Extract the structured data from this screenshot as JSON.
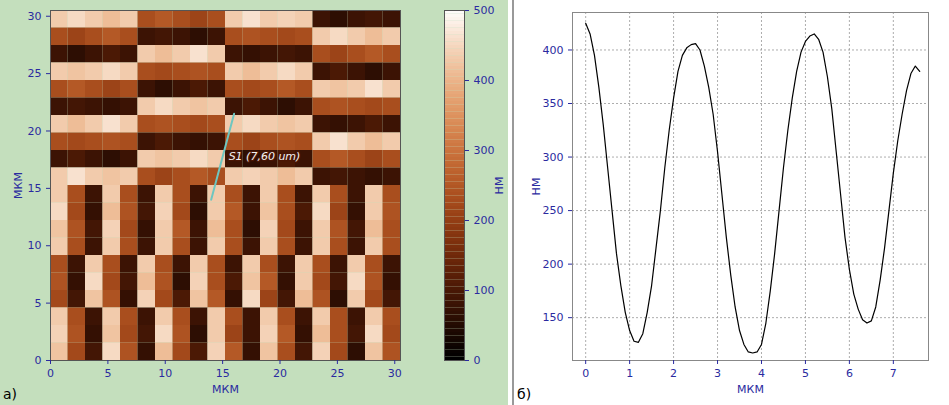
{
  "chart_data": [
    {
      "type": "heatmap",
      "panel_label": "а)",
      "x_label": "МКМ",
      "y_label": "МКМ",
      "xlim": [
        0,
        30.5
      ],
      "ylim": [
        0,
        30.5
      ],
      "xticks": [
        0,
        5,
        10,
        15,
        20,
        25,
        30
      ],
      "yticks": [
        0,
        5,
        10,
        15,
        20,
        25,
        30
      ],
      "cells": [
        [
          430,
          450,
          430,
          410,
          430,
          230,
          250,
          230,
          210,
          230,
          430,
          460,
          430,
          440,
          430,
          80,
          60,
          80,
          90,
          80
        ],
        [
          230,
          210,
          230,
          250,
          230,
          80,
          90,
          80,
          60,
          80,
          230,
          240,
          230,
          220,
          230,
          430,
          450,
          430,
          410,
          430
        ],
        [
          80,
          60,
          80,
          100,
          80,
          430,
          410,
          430,
          460,
          430,
          80,
          70,
          80,
          90,
          80,
          230,
          210,
          230,
          250,
          230
        ],
        [
          430,
          420,
          430,
          450,
          430,
          230,
          220,
          230,
          240,
          230,
          430,
          410,
          430,
          450,
          430,
          80,
          100,
          80,
          60,
          80
        ],
        [
          230,
          250,
          230,
          210,
          230,
          80,
          60,
          80,
          100,
          80,
          230,
          220,
          230,
          250,
          230,
          430,
          420,
          430,
          460,
          430
        ],
        [
          80,
          90,
          80,
          70,
          80,
          430,
          450,
          430,
          420,
          430,
          80,
          100,
          80,
          60,
          80,
          230,
          240,
          230,
          220,
          230
        ],
        [
          430,
          410,
          430,
          460,
          430,
          230,
          240,
          230,
          220,
          230,
          430,
          450,
          430,
          420,
          430,
          80,
          70,
          80,
          100,
          80
        ],
        [
          230,
          220,
          230,
          240,
          230,
          80,
          100,
          80,
          70,
          80,
          230,
          210,
          230,
          240,
          230,
          430,
          460,
          430,
          410,
          430
        ],
        [
          80,
          100,
          80,
          60,
          80,
          430,
          420,
          430,
          450,
          430,
          80,
          60,
          80,
          100,
          80,
          230,
          250,
          230,
          210,
          230
        ],
        [
          430,
          460,
          430,
          420,
          430,
          230,
          210,
          230,
          250,
          230,
          430,
          440,
          430,
          410,
          430,
          80,
          90,
          80,
          70,
          80
        ],
        [
          430,
          230,
          80,
          430,
          230,
          80,
          430,
          230,
          80,
          430,
          230,
          80,
          430,
          230,
          80,
          430,
          230,
          80,
          430,
          230
        ],
        [
          450,
          220,
          70,
          410,
          240,
          90,
          440,
          220,
          60,
          430,
          250,
          80,
          420,
          230,
          100,
          450,
          210,
          70,
          430,
          240
        ],
        [
          420,
          240,
          90,
          440,
          220,
          70,
          430,
          250,
          80,
          410,
          230,
          60,
          440,
          220,
          80,
          430,
          240,
          90,
          410,
          230
        ],
        [
          430,
          230,
          80,
          430,
          230,
          80,
          430,
          230,
          80,
          430,
          230,
          80,
          430,
          230,
          80,
          430,
          230,
          80,
          430,
          230
        ],
        [
          230,
          80,
          430,
          230,
          80,
          430,
          230,
          80,
          430,
          230,
          80,
          430,
          230,
          80,
          430,
          230,
          80,
          430,
          230,
          80
        ],
        [
          240,
          70,
          450,
          220,
          90,
          410,
          240,
          60,
          440,
          230,
          100,
          420,
          250,
          70,
          430,
          220,
          90,
          450,
          240,
          70
        ],
        [
          220,
          90,
          420,
          240,
          70,
          440,
          220,
          100,
          420,
          250,
          70,
          450,
          210,
          90,
          410,
          240,
          60,
          430,
          220,
          90
        ],
        [
          430,
          230,
          80,
          430,
          230,
          80,
          430,
          230,
          80,
          430,
          230,
          80,
          430,
          230,
          80,
          430,
          230,
          80,
          430,
          230
        ],
        [
          440,
          240,
          70,
          420,
          220,
          90,
          450,
          240,
          60,
          430,
          210,
          80,
          440,
          250,
          70,
          410,
          230,
          90,
          450,
          220
        ],
        [
          420,
          220,
          90,
          450,
          240,
          70,
          410,
          220,
          100,
          440,
          250,
          70,
          420,
          230,
          90,
          440,
          220,
          60,
          420,
          240
        ]
      ],
      "colorbar": {
        "range": [
          0,
          500
        ],
        "ticks": [
          0,
          100,
          200,
          300,
          400,
          500
        ],
        "label": "НМ"
      },
      "annotations": [
        {
          "text": "S1 (7,60 um)",
          "x": [
            14,
            16
          ],
          "y": [
            14,
            21.5
          ],
          "color": "#6ec6c0"
        }
      ]
    },
    {
      "type": "line",
      "panel_label": "б)",
      "x_label": "МКМ",
      "y_label": "НМ",
      "xlim": [
        -0.3,
        7.8
      ],
      "ylim": [
        110,
        435
      ],
      "xticks": [
        0,
        1,
        2,
        3,
        4,
        5,
        6,
        7
      ],
      "yticks": [
        150,
        200,
        250,
        300,
        350,
        400
      ],
      "grid": true,
      "color": "#000000",
      "x": [
        0,
        0.1,
        0.2,
        0.3,
        0.4,
        0.5,
        0.6,
        0.7,
        0.8,
        0.9,
        1.0,
        1.1,
        1.2,
        1.3,
        1.4,
        1.5,
        1.6,
        1.7,
        1.8,
        1.9,
        2.0,
        2.1,
        2.2,
        2.3,
        2.4,
        2.5,
        2.6,
        2.7,
        2.8,
        2.9,
        3.0,
        3.1,
        3.2,
        3.3,
        3.4,
        3.5,
        3.6,
        3.7,
        3.8,
        3.9,
        4.0,
        4.1,
        4.2,
        4.3,
        4.4,
        4.5,
        4.6,
        4.7,
        4.8,
        4.9,
        5.0,
        5.1,
        5.2,
        5.3,
        5.4,
        5.5,
        5.6,
        5.7,
        5.8,
        5.9,
        6.0,
        6.1,
        6.2,
        6.3,
        6.4,
        6.5,
        6.6,
        6.7,
        6.8,
        6.9,
        7.0,
        7.1,
        7.2,
        7.3,
        7.4,
        7.5,
        7.6
      ],
      "values": [
        425,
        415,
        395,
        365,
        330,
        290,
        250,
        210,
        180,
        155,
        138,
        128,
        127,
        135,
        155,
        180,
        215,
        250,
        290,
        325,
        355,
        380,
        395,
        402,
        405,
        406,
        400,
        385,
        365,
        340,
        305,
        265,
        225,
        190,
        160,
        138,
        125,
        118,
        117,
        118,
        125,
        145,
        175,
        210,
        250,
        290,
        325,
        355,
        380,
        398,
        408,
        413,
        415,
        410,
        398,
        375,
        345,
        305,
        265,
        225,
        195,
        172,
        158,
        148,
        145,
        147,
        160,
        185,
        215,
        250,
        285,
        315,
        340,
        362,
        378,
        385,
        380
      ]
    }
  ]
}
